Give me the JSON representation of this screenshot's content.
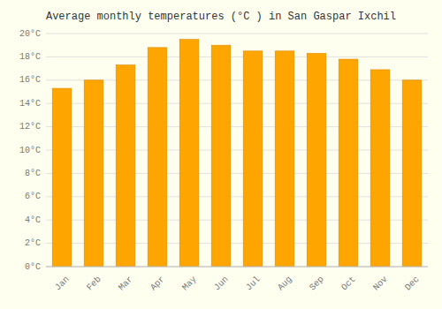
{
  "chart_data": {
    "type": "bar",
    "title": "Average monthly temperatures (°C ) in San Gaspar Ixchil",
    "categories": [
      "Jan",
      "Feb",
      "Mar",
      "Apr",
      "May",
      "Jun",
      "Jul",
      "Aug",
      "Sep",
      "Oct",
      "Nov",
      "Dec"
    ],
    "values": [
      15.3,
      16.0,
      17.3,
      18.8,
      19.5,
      19.0,
      18.5,
      18.5,
      18.3,
      17.8,
      16.9,
      16.0
    ],
    "color": "#FFA500",
    "ylim": [
      0,
      20
    ],
    "yticks": [
      {
        "value": 0,
        "label": "0°C"
      },
      {
        "value": 2,
        "label": "2°C"
      },
      {
        "value": 4,
        "label": "4°C"
      },
      {
        "value": 6,
        "label": "6°C"
      },
      {
        "value": 8,
        "label": "8°C"
      },
      {
        "value": 10,
        "label": "10°C"
      },
      {
        "value": 12,
        "label": "12°C"
      },
      {
        "value": 14,
        "label": "14°C"
      },
      {
        "value": 16,
        "label": "16°C"
      },
      {
        "value": 18,
        "label": "18°C"
      },
      {
        "value": 20,
        "label": "20°C"
      }
    ],
    "grid": true
  }
}
